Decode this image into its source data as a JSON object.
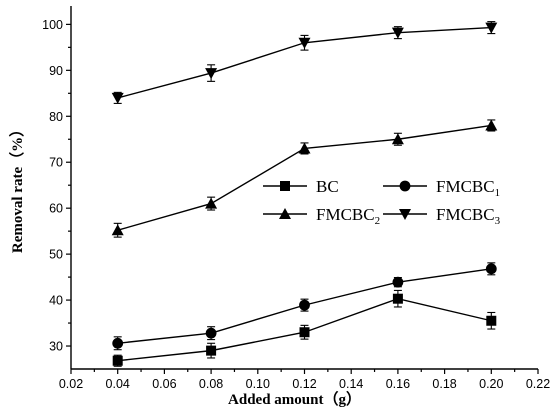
{
  "chart_data": {
    "type": "line",
    "xlabel": "Added amount（g）",
    "ylabel": "Removal rate（%）",
    "xlim": [
      0.02,
      0.22
    ],
    "ylim": [
      25,
      104
    ],
    "x_ticks": [
      "0.02",
      "0.04",
      "0.06",
      "0.08",
      "0.10",
      "0.12",
      "0.14",
      "0.16",
      "0.18",
      "0.20",
      "0.22"
    ],
    "y_ticks": [
      "30",
      "40",
      "50",
      "60",
      "70",
      "80",
      "90",
      "100"
    ],
    "grid": false,
    "legend_position": "center-right",
    "series": [
      {
        "name": "BC",
        "name_main": "BC",
        "name_sub": "",
        "marker": "square",
        "x": [
          0.04,
          0.08,
          0.12,
          0.16,
          0.2
        ],
        "y": [
          26.8,
          29.0,
          33.0,
          40.3,
          35.5
        ],
        "err": [
          1.2,
          1.6,
          1.5,
          1.8,
          1.8
        ]
      },
      {
        "name": "FMCBC1",
        "name_main": "FMCBC",
        "name_sub": "1",
        "marker": "circle",
        "x": [
          0.04,
          0.08,
          0.12,
          0.16,
          0.2
        ],
        "y": [
          30.6,
          32.8,
          38.9,
          43.9,
          46.8
        ],
        "err": [
          1.4,
          1.4,
          1.3,
          1.0,
          1.3
        ]
      },
      {
        "name": "FMCBC2",
        "name_main": "FMCBC",
        "name_sub": "2",
        "marker": "triangle-up",
        "x": [
          0.04,
          0.08,
          0.12,
          0.16,
          0.2
        ],
        "y": [
          55.2,
          61.0,
          73.0,
          75.0,
          78.0
        ],
        "err": [
          1.5,
          1.4,
          1.2,
          1.3,
          1.2
        ]
      },
      {
        "name": "FMCBC3",
        "name_main": "FMCBC",
        "name_sub": "3",
        "marker": "triangle-down",
        "x": [
          0.04,
          0.08,
          0.12,
          0.16,
          0.2
        ],
        "y": [
          84.0,
          89.4,
          96.0,
          98.2,
          99.3
        ],
        "err": [
          1.2,
          1.8,
          1.6,
          1.3,
          1.3
        ]
      }
    ]
  }
}
